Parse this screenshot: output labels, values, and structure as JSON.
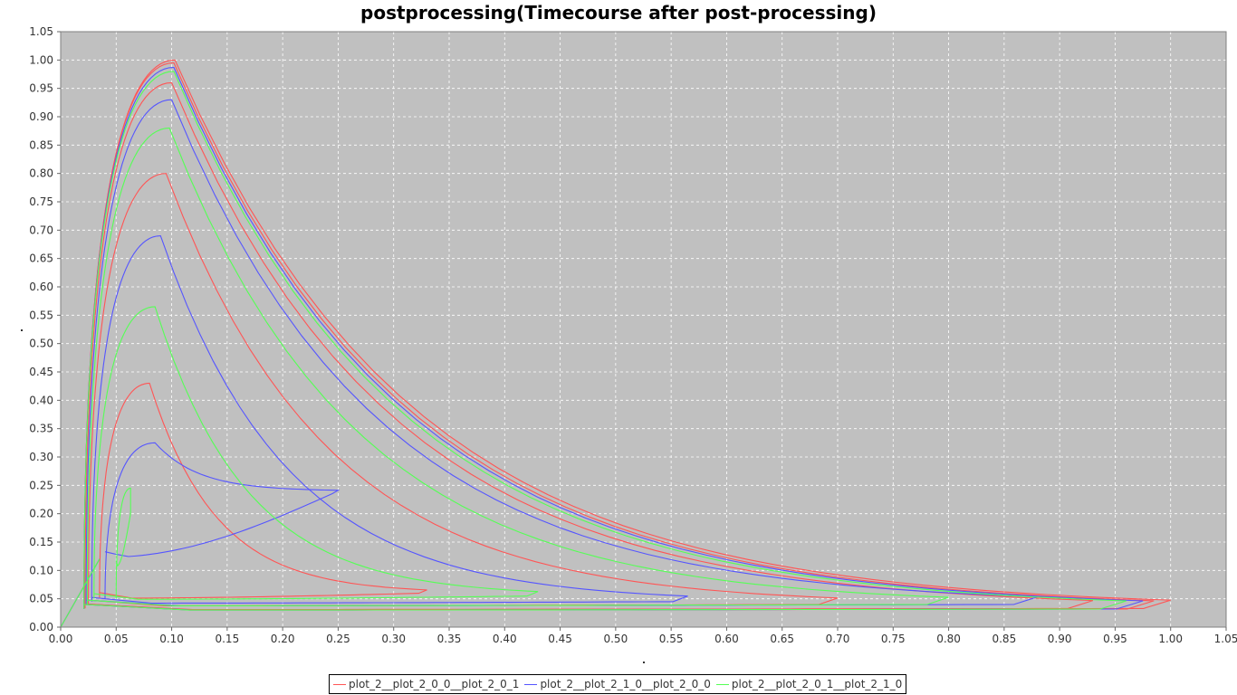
{
  "chart_data": {
    "type": "line",
    "title": "postprocessing(Timecourse after post-processing)",
    "xlabel": ".",
    "ylabel": ".",
    "xlim": [
      0,
      1.05
    ],
    "ylim": [
      0,
      1.05
    ],
    "xticks": [
      "0.00",
      "0.05",
      "0.10",
      "0.15",
      "0.20",
      "0.25",
      "0.30",
      "0.35",
      "0.40",
      "0.45",
      "0.50",
      "0.55",
      "0.60",
      "0.65",
      "0.70",
      "0.75",
      "0.80",
      "0.85",
      "0.90",
      "0.95",
      "1.00",
      "1.05"
    ],
    "yticks": [
      "0.00",
      "0.05",
      "0.10",
      "0.15",
      "0.20",
      "0.25",
      "0.30",
      "0.35",
      "0.40",
      "0.45",
      "0.50",
      "0.55",
      "0.60",
      "0.65",
      "0.70",
      "0.75",
      "0.80",
      "0.85",
      "0.90",
      "0.95",
      "1.00",
      "1.05"
    ],
    "grid": true,
    "background": "#c0c0c0",
    "legend_position": "bottom",
    "series": [
      {
        "name": "plot_2__plot_2_0_0__plot_2_0_1",
        "color": "#ff5555",
        "loops": [
          {
            "x_min": 0.035,
            "x_max": 0.33,
            "peak_x": 0.08,
            "peak_y": 0.43,
            "right_y": 0.06
          },
          {
            "x_min": 0.025,
            "x_max": 0.7,
            "peak_x": 0.095,
            "peak_y": 0.8,
            "right_y": 0.04
          },
          {
            "x_min": 0.022,
            "x_max": 0.93,
            "peak_x": 0.1,
            "peak_y": 0.96,
            "right_y": 0.033
          },
          {
            "x_min": 0.021,
            "x_max": 0.985,
            "peak_x": 0.102,
            "peak_y": 0.995,
            "right_y": 0.032
          },
          {
            "x_min": 0.021,
            "x_max": 1.0,
            "peak_x": 0.103,
            "peak_y": 1.0,
            "right_y": 0.033
          }
        ]
      },
      {
        "name": "plot_2__plot_2_1_0__plot_2_0_0",
        "color": "#5555ff",
        "loops": [
          {
            "x_min": 0.04,
            "x_max": 0.25,
            "peak_x": 0.085,
            "peak_y": 0.325,
            "right_y": 0.24
          },
          {
            "x_min": 0.028,
            "x_max": 0.565,
            "peak_x": 0.09,
            "peak_y": 0.69,
            "right_y": 0.045
          },
          {
            "x_min": 0.023,
            "x_max": 0.88,
            "peak_x": 0.1,
            "peak_y": 0.93,
            "right_y": 0.04
          },
          {
            "x_min": 0.021,
            "x_max": 0.975,
            "peak_x": 0.102,
            "peak_y": 0.987,
            "right_y": 0.032
          }
        ]
      },
      {
        "name": "plot_2__plot_2_0_1__plot_2_1_0",
        "color": "#55ff55",
        "loops": [
          {
            "x_min": 0.05,
            "x_max": 0.063,
            "peak_x": 0.063,
            "peak_y": 0.245,
            "right_y": 0.2
          },
          {
            "x_min": 0.03,
            "x_max": 0.43,
            "peak_x": 0.085,
            "peak_y": 0.565,
            "right_y": 0.055
          },
          {
            "x_min": 0.024,
            "x_max": 0.8,
            "peak_x": 0.098,
            "peak_y": 0.88,
            "right_y": 0.04
          },
          {
            "x_min": 0.021,
            "x_max": 0.96,
            "peak_x": 0.102,
            "peak_y": 0.98,
            "right_y": 0.032
          }
        ]
      }
    ]
  }
}
